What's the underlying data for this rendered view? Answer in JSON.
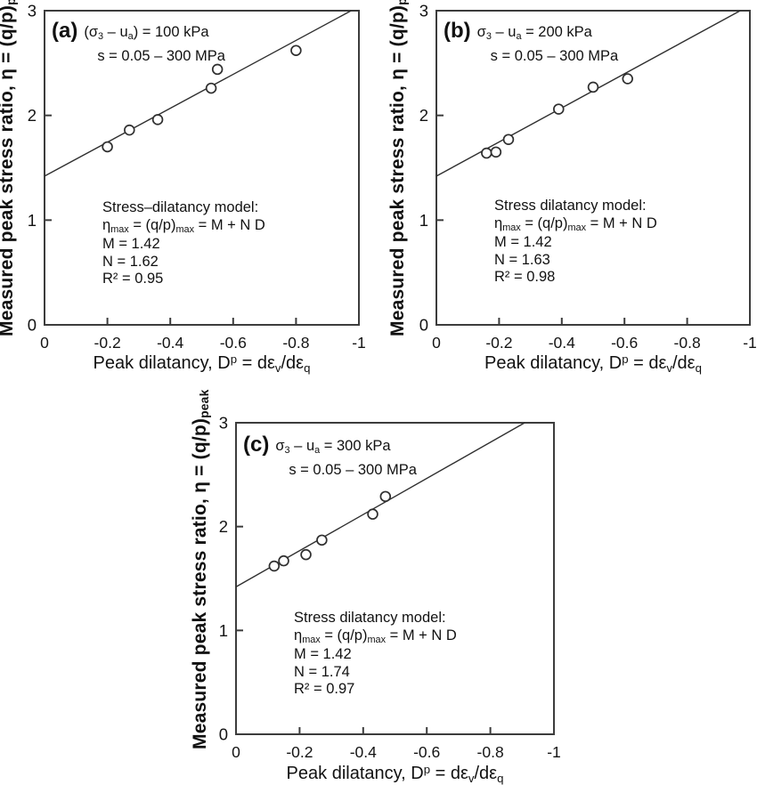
{
  "figure": {
    "background": "#ffffff",
    "axis_color": "#3c3c3c",
    "text_color": "#141414",
    "line_color": "#2f2f2f",
    "point_stroke": "#2f2f2f",
    "point_fill": "#ffffff"
  },
  "axes": {
    "xlabel_text": "Peak dilatancy, Dp = dεv/dεq",
    "xlabel_html": "Peak dilatancy, D<sup>p</sup> = dε<sub>v</sub>/dε<sub>q</sub>",
    "ylabel_text": "Measured peak stress ratio, η = (q/p)peak",
    "ylabel_html": "Measured peak stress ratio, η = (q/p)<sub>peak</sub>",
    "xlim": [
      0,
      -1
    ],
    "ylim": [
      0,
      3
    ],
    "xticks": [
      0,
      -0.2,
      -0.4,
      -0.6,
      -0.8,
      -1
    ],
    "xtick_labels": [
      "0",
      "-0.2",
      "-0.4",
      "-0.6",
      "-0.8",
      "-1"
    ],
    "yticks": [
      0,
      1,
      2,
      3
    ],
    "ytick_labels": [
      "0",
      "1",
      "2",
      "3"
    ],
    "grid": false
  },
  "chart_data": [
    {
      "id": "a",
      "type": "scatter",
      "panel": "(a)",
      "condition_text": "(σ3 – ua) = 100 kPa",
      "condition_html": "(σ<sub>3</sub> – u<sub>a</sub>) = 100 kPa",
      "suction_range": "s = 0.05 – 300 MPa",
      "annotation": {
        "title": "Stress–dilatancy model:",
        "equation_text": "ηmax = (q/p)max = M + N D",
        "equation_html": "η<sub>max</sub> = (q/p)<sub>max</sub> = M + N D",
        "M_text": "M = 1.42",
        "N_text": "N = 1.62",
        "R2_text": "R² = 0.95"
      },
      "fit": {
        "M": 1.42,
        "N": 1.62,
        "R2": 0.95
      },
      "points": [
        [
          -0.2,
          1.7
        ],
        [
          -0.27,
          1.86
        ],
        [
          -0.36,
          1.96
        ],
        [
          -0.53,
          2.26
        ],
        [
          -0.55,
          2.44
        ],
        [
          -0.8,
          2.62
        ]
      ]
    },
    {
      "id": "b",
      "type": "scatter",
      "panel": "(b)",
      "condition_text": "σ3 – ua = 200 kPa",
      "condition_html": "σ<sub>3</sub> – u<sub>a</sub> = 200 kPa",
      "suction_range": "s = 0.05 – 300 MPa",
      "annotation": {
        "title": "Stress dilatancy model:",
        "equation_text": "ηmax = (q/p)max = M + N D",
        "equation_html": "η<sub>max</sub> = (q/p)<sub>max</sub> = M + N D",
        "M_text": "M = 1.42",
        "N_text": "N = 1.63",
        "R2_text": "R² = 0.98"
      },
      "fit": {
        "M": 1.42,
        "N": 1.63,
        "R2": 0.98
      },
      "points": [
        [
          -0.16,
          1.64
        ],
        [
          -0.19,
          1.65
        ],
        [
          -0.23,
          1.77
        ],
        [
          -0.39,
          2.06
        ],
        [
          -0.5,
          2.27
        ],
        [
          -0.61,
          2.35
        ]
      ]
    },
    {
      "id": "c",
      "type": "scatter",
      "panel": "(c)",
      "condition_text": "σ3 – ua = 300 kPa",
      "condition_html": "σ<sub>3</sub> – u<sub>a</sub> = 300 kPa",
      "suction_range": "s = 0.05 – 300 MPa",
      "annotation": {
        "title": "Stress dilatancy model:",
        "equation_text": "ηmax = (q/p)max = M + N D",
        "equation_html": "η<sub>max</sub> = (q/p)<sub>max</sub> = M + N D",
        "M_text": "M = 1.42",
        "N_text": "N = 1.74",
        "R2_text": "R² = 0.97"
      },
      "fit": {
        "M": 1.42,
        "N": 1.74,
        "R2": 0.97
      },
      "points": [
        [
          -0.12,
          1.62
        ],
        [
          -0.15,
          1.67
        ],
        [
          -0.22,
          1.73
        ],
        [
          -0.27,
          1.87
        ],
        [
          -0.43,
          2.12
        ],
        [
          -0.47,
          2.29
        ]
      ]
    }
  ]
}
